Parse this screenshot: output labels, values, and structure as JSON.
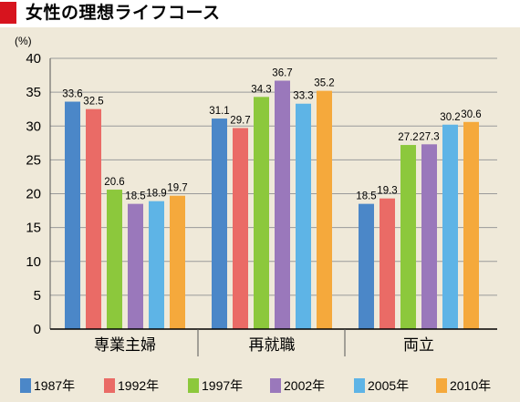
{
  "title": "女性の理想ライフコース",
  "chart_data": {
    "type": "bar",
    "unit_label": "(%)",
    "categories": [
      "専業主婦",
      "再就職",
      "両立"
    ],
    "ylim": [
      0,
      40
    ],
    "yticks": [
      0,
      5,
      10,
      15,
      20,
      25,
      30,
      35,
      40
    ],
    "grid": true,
    "legend_position": "bottom",
    "series": [
      {
        "name": "1987年",
        "color": "#4b87c8",
        "values": [
          33.6,
          31.1,
          18.5
        ]
      },
      {
        "name": "1992年",
        "color": "#ea6b66",
        "values": [
          32.5,
          29.7,
          19.3
        ]
      },
      {
        "name": "1997年",
        "color": "#8cc83c",
        "values": [
          20.6,
          34.3,
          27.2
        ]
      },
      {
        "name": "2002年",
        "color": "#9a78bb",
        "values": [
          18.5,
          36.7,
          27.3
        ]
      },
      {
        "name": "2005年",
        "color": "#5eb4e6",
        "values": [
          18.9,
          33.3,
          30.2
        ]
      },
      {
        "name": "2010年",
        "color": "#f5a93c",
        "values": [
          19.7,
          35.2,
          30.6
        ]
      }
    ]
  }
}
